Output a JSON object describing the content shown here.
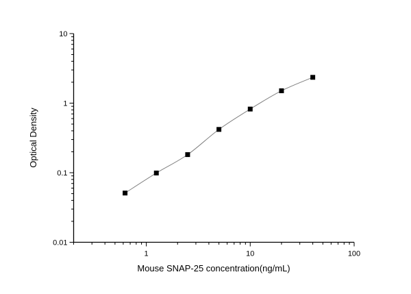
{
  "chart_data": {
    "type": "scatter",
    "title": "",
    "xlabel": "Mouse SNAP-25 concentration(ng/mL)",
    "ylabel": "Optical Density",
    "x_scale": "log",
    "y_scale": "log",
    "xlim": [
      0.2,
      100
    ],
    "ylim": [
      0.01,
      10
    ],
    "x_ticks": [
      {
        "value": 1,
        "label": "1"
      },
      {
        "value": 10,
        "label": "10"
      },
      {
        "value": 100,
        "label": "100"
      }
    ],
    "y_ticks": [
      {
        "value": 0.01,
        "label": "0.01"
      },
      {
        "value": 0.1,
        "label": "0.1"
      },
      {
        "value": 1,
        "label": "1"
      },
      {
        "value": 10,
        "label": "10"
      }
    ],
    "grid": false,
    "fit_curve": true,
    "marker": "square",
    "colors": {
      "marker": "#000000",
      "curve": "#808080",
      "axis": "#000000"
    },
    "series": [
      {
        "x": [
          0.625,
          1.25,
          2.5,
          5,
          10,
          20,
          40
        ],
        "y": [
          0.051,
          0.099,
          0.182,
          0.419,
          0.822,
          1.506,
          2.35
        ]
      }
    ]
  }
}
